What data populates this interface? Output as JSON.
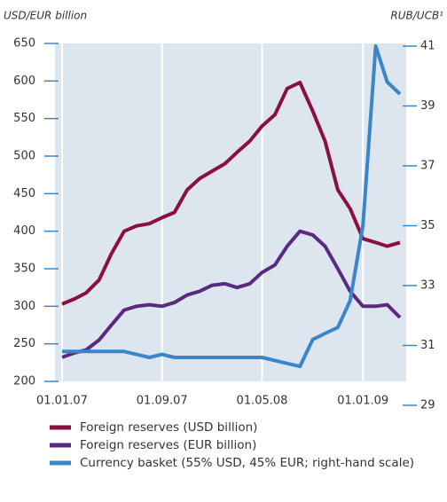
{
  "chart_data": {
    "type": "line",
    "y_label": "USD/EUR billion",
    "y2_label": "RUB/UCB¹",
    "x": [
      "2007-01-01",
      "2007-02-01",
      "2007-03-01",
      "2007-04-01",
      "2007-05-01",
      "2007-06-01",
      "2007-07-01",
      "2007-08-01",
      "2007-09-01",
      "2007-10-01",
      "2007-11-01",
      "2007-12-01",
      "2008-01-01",
      "2008-02-01",
      "2008-03-01",
      "2008-04-01",
      "2008-05-01",
      "2008-06-01",
      "2008-07-01",
      "2008-08-01",
      "2008-09-01",
      "2008-10-01",
      "2008-11-01",
      "2008-12-01",
      "2009-01-01",
      "2009-02-01",
      "2009-03-01",
      "2009-04-01"
    ],
    "series": [
      {
        "name": "Foreign reserves (USD billion)",
        "color": "#8b0f3f",
        "values": [
          303,
          310,
          318,
          335,
          370,
          400,
          407,
          410,
          418,
          425,
          455,
          470,
          480,
          490,
          505,
          520,
          540,
          555,
          590,
          598,
          560,
          520,
          455,
          430,
          390,
          385,
          380,
          385
        ]
      },
      {
        "name": "Foreign reserves (EUR billion)",
        "color": "#5a2a80",
        "values": [
          232,
          238,
          242,
          255,
          275,
          295,
          300,
          302,
          300,
          305,
          315,
          320,
          328,
          330,
          325,
          330,
          345,
          355,
          380,
          400,
          395,
          380,
          350,
          320,
          300,
          300,
          302,
          285
        ]
      },
      {
        "name": "Currency basket (55% USD, 45% EUR; right-hand scale)",
        "color": "#3a86c8",
        "axis": "y2",
        "values": [
          30.8,
          30.8,
          30.8,
          30.8,
          30.8,
          30.8,
          30.7,
          30.6,
          30.7,
          30.6,
          30.6,
          30.6,
          30.6,
          30.6,
          30.6,
          30.6,
          30.6,
          30.5,
          30.4,
          30.3,
          31.2,
          31.4,
          31.6,
          32.5,
          35.0,
          41.0,
          39.8,
          39.4
        ]
      }
    ],
    "xlim": [
      "2006-11-19",
      "2009-05-12"
    ],
    "xticks": [
      {
        "value": "2007-01-01",
        "label": "01.01.07"
      },
      {
        "value": "2007-09-01",
        "label": "01.09.07"
      },
      {
        "value": "2008-05-01",
        "label": "01.05.08"
      },
      {
        "value": "2009-01-01",
        "label": "01.01.09"
      }
    ],
    "ylim": [
      200,
      650
    ],
    "yticks": [
      200,
      250,
      300,
      350,
      400,
      450,
      500,
      550,
      600,
      650
    ],
    "y2lim": [
      29,
      41
    ],
    "y2ticks": [
      29,
      31,
      33,
      35,
      37,
      39,
      41
    ],
    "grid": true
  }
}
